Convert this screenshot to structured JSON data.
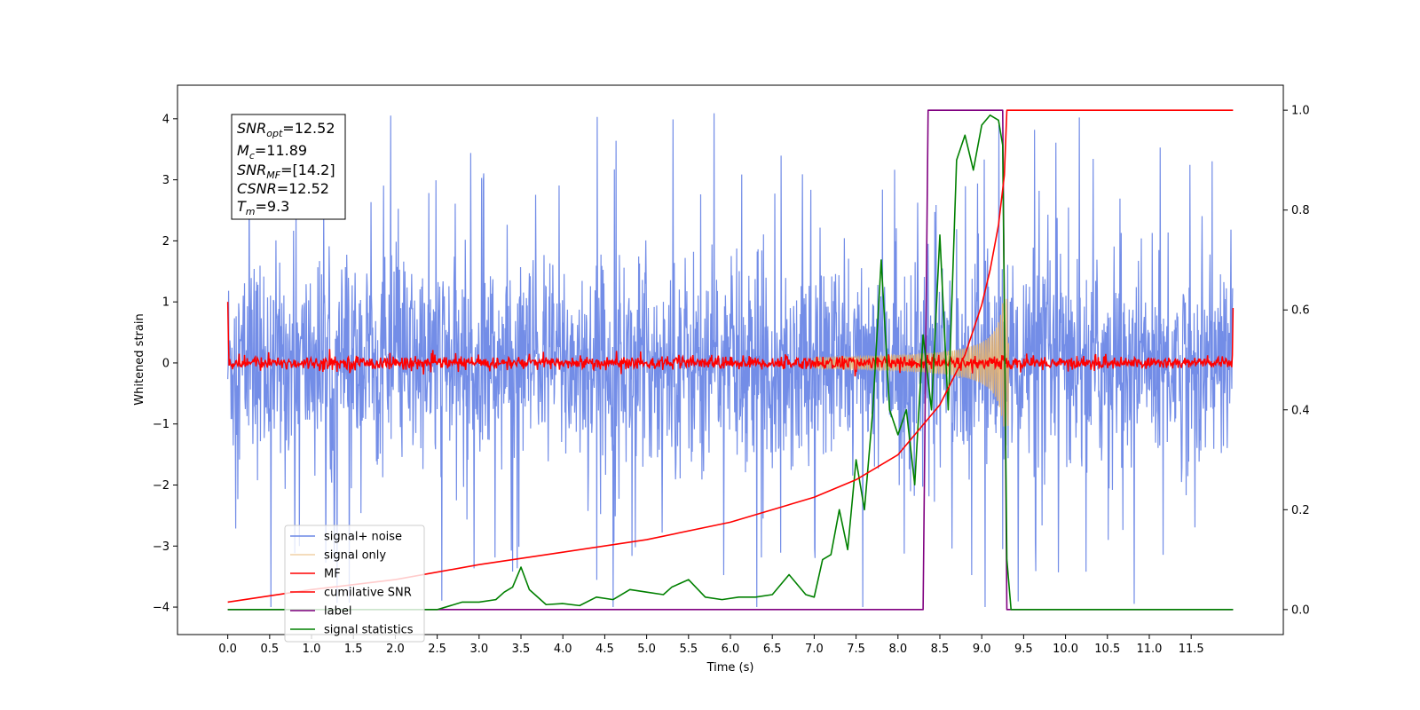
{
  "chart_data": {
    "type": "line",
    "xlabel": "Time (s)",
    "ylabel": "Whitened strain",
    "xlim": [
      -0.6,
      12.6
    ],
    "ylim": [
      -4.45,
      4.55
    ],
    "y2lim": [
      -0.05,
      1.05
    ],
    "x_ticks": [
      "0.0",
      "0.5",
      "1.0",
      "1.5",
      "2.0",
      "2.5",
      "3.0",
      "3.5",
      "4.0",
      "4.5",
      "5.0",
      "5.5",
      "6.0",
      "6.5",
      "7.0",
      "7.5",
      "8.0",
      "8.5",
      "9.0",
      "9.5",
      "10.0",
      "10.5",
      "11.0",
      "11.5"
    ],
    "y_ticks": [
      "−4",
      "−3",
      "−2",
      "−1",
      "0",
      "1",
      "2",
      "3",
      "4"
    ],
    "y2_ticks": [
      "0.0",
      "0.2",
      "0.4",
      "0.6",
      "0.8",
      "1.0"
    ],
    "annotation": [
      {
        "base": "SNR",
        "sub": "opt",
        "rest": "=12.52"
      },
      {
        "base": "M",
        "sub": "c",
        "rest": "=11.89"
      },
      {
        "base": "SNR",
        "sub": "MF",
        "rest": "=[14.2]"
      },
      {
        "base": "CSNR",
        "sub": "",
        "rest": "=12.52"
      },
      {
        "base": "T",
        "sub": "m",
        "rest": "=9.3"
      }
    ],
    "legend_position": "lower-left",
    "series": [
      {
        "name": "signal+ noise",
        "color": "#6b87e6",
        "axis": "left",
        "description": "whitened noise ~N(0,1) over 0–12 s"
      },
      {
        "name": "signal only",
        "color": "#e8b36a",
        "axis": "left",
        "description": "chirp growing to ±1 near 9.3 s"
      },
      {
        "name": "MF",
        "color": "#ff0000",
        "axis": "left",
        "description": "matched filter output near 0"
      },
      {
        "name": "cumilative SNR",
        "color": "#ff0000",
        "axis": "right",
        "x": [
          0.0,
          1.0,
          2.0,
          3.0,
          4.0,
          5.0,
          6.0,
          7.0,
          7.5,
          8.0,
          8.5,
          8.8,
          9.0,
          9.1,
          9.2,
          9.27,
          9.3,
          12.0
        ],
        "values": [
          0.015,
          0.04,
          0.06,
          0.09,
          0.115,
          0.14,
          0.175,
          0.225,
          0.26,
          0.31,
          0.41,
          0.51,
          0.61,
          0.68,
          0.77,
          0.87,
          1.0,
          1.0
        ]
      },
      {
        "name": "label",
        "color": "#800080",
        "axis": "right",
        "x": [
          0.0,
          8.3,
          8.36,
          9.25,
          9.3,
          12.0
        ],
        "values": [
          0.0,
          0.0,
          1.0,
          1.0,
          0.0,
          0.0
        ]
      },
      {
        "name": "signal statistics",
        "color": "#008000",
        "axis": "right",
        "x": [
          0.0,
          0.5,
          1.0,
          1.5,
          2.0,
          2.5,
          2.8,
          3.0,
          3.2,
          3.3,
          3.4,
          3.5,
          3.6,
          3.8,
          4.0,
          4.2,
          4.4,
          4.6,
          4.8,
          5.0,
          5.2,
          5.3,
          5.5,
          5.7,
          5.9,
          6.1,
          6.3,
          6.5,
          6.7,
          6.9,
          7.0,
          7.1,
          7.2,
          7.3,
          7.4,
          7.5,
          7.6,
          7.7,
          7.8,
          7.9,
          8.0,
          8.1,
          8.2,
          8.3,
          8.4,
          8.5,
          8.6,
          8.7,
          8.8,
          8.9,
          9.0,
          9.1,
          9.2,
          9.25,
          9.3,
          9.35,
          9.4,
          9.5,
          12.0
        ],
        "values": [
          0.0,
          0.0,
          0.0,
          0.0,
          0.0,
          0.0,
          0.015,
          0.015,
          0.02,
          0.035,
          0.045,
          0.085,
          0.04,
          0.01,
          0.012,
          0.008,
          0.025,
          0.02,
          0.04,
          0.035,
          0.03,
          0.045,
          0.06,
          0.025,
          0.02,
          0.025,
          0.025,
          0.03,
          0.07,
          0.03,
          0.025,
          0.1,
          0.11,
          0.2,
          0.12,
          0.3,
          0.2,
          0.4,
          0.7,
          0.4,
          0.35,
          0.4,
          0.25,
          0.55,
          0.4,
          0.75,
          0.4,
          0.9,
          0.95,
          0.88,
          0.97,
          0.99,
          0.98,
          0.93,
          0.1,
          0.0,
          0.0,
          0.0,
          0.0
        ]
      }
    ]
  }
}
